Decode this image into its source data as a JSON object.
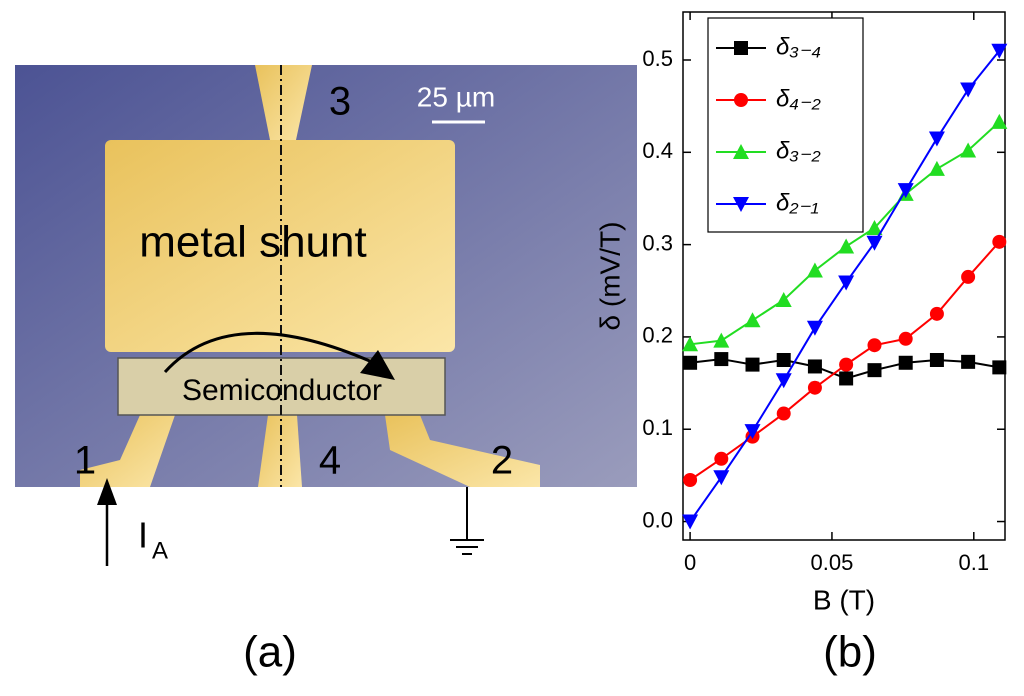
{
  "panel_a": {
    "pad_3": "3",
    "scale_bar": "25 µm",
    "shunt_label": "metal shunt",
    "semiconductor_label": "Semiconductor",
    "pad_1": "1",
    "pad_4": "4",
    "pad_2": "2",
    "current_label": "I",
    "current_subscript": "A",
    "panel_label": "(a)"
  },
  "chart_data": {
    "type": "line",
    "panel_label": "(b)",
    "x_label": "B (T)",
    "y_label": "δ (mV/T)",
    "x": [
      0,
      0.011,
      0.022,
      0.033,
      0.044,
      0.055,
      0.065,
      0.076,
      0.087,
      0.098,
      0.109
    ],
    "series": [
      {
        "name": "δ₃₋₄",
        "color": "#000000",
        "marker": "square",
        "values": [
          0.172,
          0.176,
          0.17,
          0.175,
          0.168,
          0.155,
          0.164,
          0.172,
          0.175,
          0.173,
          0.167
        ]
      },
      {
        "name": "δ₄₋₂",
        "color": "#ff0000",
        "marker": "circle",
        "values": [
          0.045,
          0.068,
          0.092,
          0.117,
          0.145,
          0.17,
          0.191,
          0.198,
          0.225,
          0.265,
          0.303
        ]
      },
      {
        "name": "δ₃₋₂",
        "color": "#22dd22",
        "marker": "triangle-up",
        "values": [
          0.192,
          0.196,
          0.218,
          0.24,
          0.272,
          0.298,
          0.318,
          0.355,
          0.382,
          0.402,
          0.433
        ]
      },
      {
        "name": "δ₂₋₁",
        "color": "#0000ff",
        "marker": "triangle-down",
        "values": [
          0.0,
          0.048,
          0.098,
          0.153,
          0.21,
          0.259,
          0.302,
          0.359,
          0.415,
          0.468,
          0.51
        ]
      }
    ],
    "xlim": [
      -0.0025,
      0.111
    ],
    "ylim": [
      -0.02,
      0.552
    ],
    "xticks": [
      0,
      0.05,
      0.1
    ],
    "yticks": [
      {
        "value": 0,
        "label": "0.0"
      },
      0.1,
      0.2,
      0.3,
      0.4,
      0.5
    ],
    "legend": "upper left"
  }
}
